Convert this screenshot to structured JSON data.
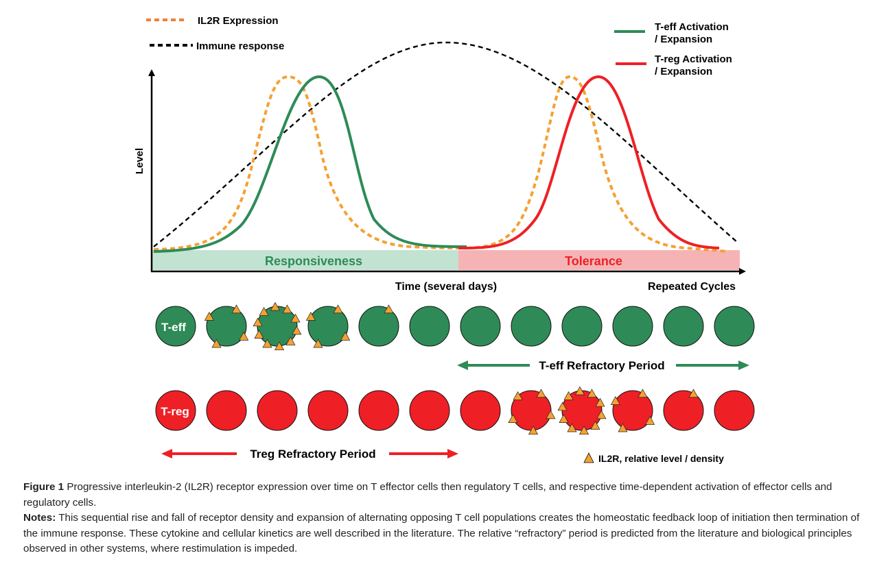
{
  "legend": {
    "il2r": "IL2R Expression",
    "immune": "Immune response",
    "teff": [
      "T-eff Activation",
      "/ Expansion"
    ],
    "treg": [
      "T-reg Activation",
      "/ Expansion"
    ]
  },
  "axes": {
    "ylabel": "Level",
    "xlabel": "Time (several days)",
    "repeated": "Repeated Cycles"
  },
  "phases": {
    "responsiveness": "Responsiveness",
    "tolerance": "Tolerance"
  },
  "cells": {
    "teff_label": "T-eff",
    "treg_label": "T-reg",
    "teff_il2r_triangles": [
      0,
      4,
      10,
      4,
      1,
      0,
      0,
      0,
      0,
      0,
      0,
      0
    ],
    "treg_il2r_triangles": [
      0,
      0,
      0,
      0,
      0,
      0,
      0,
      5,
      10,
      4,
      1,
      0
    ],
    "teff_refractory": "T-eff Refractory Period",
    "treg_refractory": "Treg Refractory Period",
    "il2r_key": "IL2R,  relative level / density"
  },
  "colors": {
    "teff": "#2e8b57",
    "treg": "#ee2026",
    "il2r": "#f4a133",
    "responsive_band": "#c2e3d1",
    "tolerance_band": "#f6b3b5"
  },
  "caption": {
    "figure_lead": "Figure 1",
    "figure_text": "Progressive interleukin-2 (IL2R) receptor expression over time on T effector cells then regulatory T cells, and respective time-dependent activation of effector cells and regulatory cells.",
    "notes_lead": "Notes:",
    "notes_text": "This sequential rise and fall of receptor density and expansion of alternating opposing T cell populations creates the homeostatic feedback loop of initiation then termination of the immune response. These cytokine and cellular kinetics are well described in the literature. The relative “refractory” period is predicted from the literature and biological principles observed in other systems, where restimulation is impeded."
  }
}
